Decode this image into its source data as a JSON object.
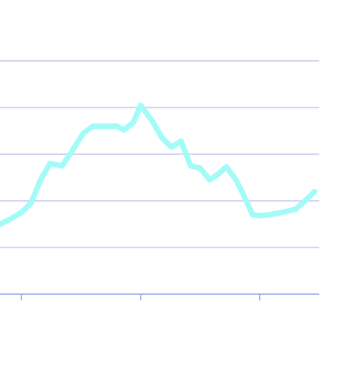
{
  "chart_data": {
    "type": "line",
    "ylim": [
      0,
      5
    ],
    "y_gridlines": [
      0,
      1,
      2,
      3,
      4,
      5
    ],
    "x_ticks": [
      0,
      5,
      10
    ],
    "xlim": [
      -0.9,
      12.5
    ],
    "grid": true,
    "series": [
      {
        "color": "#a3fbf8",
        "x": [
          -0.9,
          -0.5,
          0,
          0.4,
          0.8,
          1.2,
          1.7,
          2.1,
          2.6,
          3.0,
          3.4,
          4.0,
          4.3,
          4.7,
          5.0,
          5.5,
          5.9,
          6.3,
          6.7,
          7.1,
          7.5,
          7.9,
          8.2,
          8.6,
          9.0,
          9.3,
          9.7,
          10.0,
          10.4,
          10.9,
          11.5,
          11.9,
          12.3
        ],
        "y": [
          1.5,
          1.6,
          1.75,
          1.95,
          2.45,
          2.8,
          2.75,
          3.05,
          3.45,
          3.6,
          3.6,
          3.6,
          3.52,
          3.68,
          4.05,
          3.7,
          3.35,
          3.15,
          3.28,
          2.75,
          2.7,
          2.45,
          2.55,
          2.73,
          2.45,
          2.15,
          1.7,
          1.68,
          1.7,
          1.75,
          1.82,
          2.0,
          2.2
        ]
      }
    ]
  },
  "colors": {
    "grid": "#c3c9ef",
    "axis": "#9aa6e6",
    "background": "#ffffff"
  }
}
